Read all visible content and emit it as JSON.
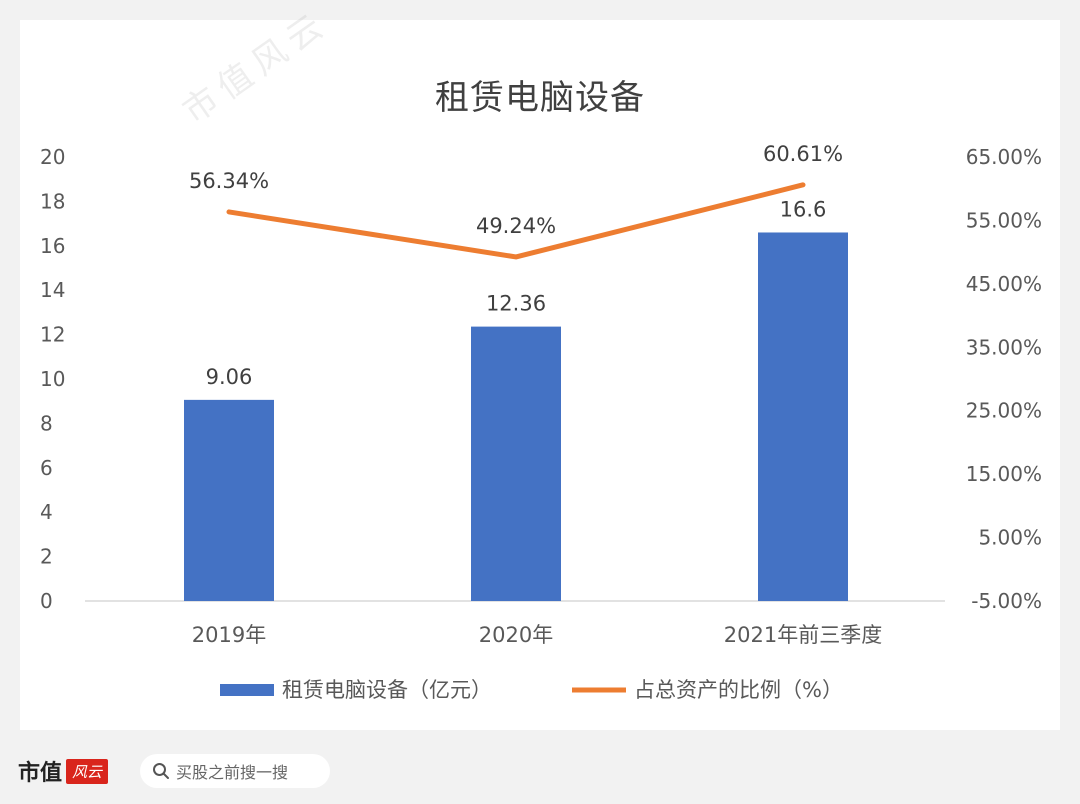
{
  "chart_data": {
    "type": "bar",
    "title": "租赁电脑设备",
    "categories": [
      "2019年",
      "2020年",
      "2021年前三季度"
    ],
    "series": [
      {
        "name": "租赁电脑设备（亿元）",
        "type": "bar",
        "axis": "left",
        "color": "#4472c4",
        "values": [
          9.06,
          12.36,
          16.6
        ],
        "labels": [
          "9.06",
          "12.36",
          "16.6"
        ]
      },
      {
        "name": "占总资产的比例（%）",
        "type": "line",
        "axis": "right",
        "color": "#ed7d31",
        "values": [
          56.34,
          49.24,
          60.61
        ],
        "labels": [
          "56.34%",
          "49.24%",
          "60.61%"
        ]
      }
    ],
    "y_left": {
      "ylim": [
        0,
        20
      ],
      "ticks": [
        "0",
        "2",
        "4",
        "6",
        "8",
        "10",
        "12",
        "14",
        "16",
        "18",
        "20"
      ]
    },
    "y_right": {
      "ylim": [
        -5,
        65
      ],
      "ticks": [
        "-5.00%",
        "5.00%",
        "15.00%",
        "25.00%",
        "35.00%",
        "45.00%",
        "55.00%",
        "65.00%"
      ]
    },
    "grid": false,
    "legend": "bottom"
  },
  "footer": {
    "brand": "市值",
    "brand_logo": "风云",
    "search_placeholder": "买股之前搜一搜"
  },
  "watermark_text": "市值风云"
}
